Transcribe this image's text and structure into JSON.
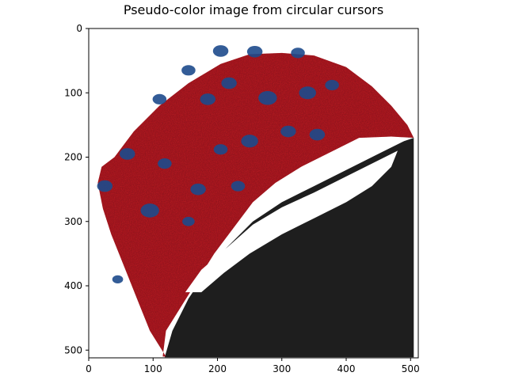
{
  "chart_data": {
    "type": "heatmap",
    "title": "Pseudo-color image from circular cursors",
    "xlabel": "",
    "ylabel": "",
    "image_size": [
      512,
      512
    ],
    "xlim": [
      0,
      511
    ],
    "ylim": [
      511,
      0
    ],
    "y_inverted": true,
    "x_ticks": [
      0,
      100,
      200,
      300,
      400,
      500
    ],
    "y_ticks": [
      0,
      100,
      200,
      300,
      400,
      500
    ],
    "x_tick_labels": [
      "0",
      "100",
      "200",
      "300",
      "400",
      "500"
    ],
    "y_tick_labels": [
      "0",
      "100",
      "200",
      "300",
      "400",
      "500"
    ],
    "grid": false,
    "legend": "none",
    "colors": {
      "tissue": "#b01a22",
      "nuclei": "#1d4a8c",
      "background_dark": "#1e1e1e",
      "saturated": "#ffffff"
    },
    "regions": {
      "tissue_outline": [
        [
          120,
          510
        ],
        [
          95,
          470
        ],
        [
          75,
          420
        ],
        [
          55,
          370
        ],
        [
          35,
          320
        ],
        [
          22,
          280
        ],
        [
          14,
          240
        ],
        [
          20,
          215
        ],
        [
          40,
          200
        ],
        [
          70,
          160
        ],
        [
          110,
          120
        ],
        [
          155,
          85
        ],
        [
          205,
          55
        ],
        [
          250,
          40
        ],
        [
          300,
          38
        ],
        [
          350,
          42
        ],
        [
          400,
          60
        ],
        [
          440,
          90
        ],
        [
          470,
          120
        ],
        [
          495,
          150
        ],
        [
          505,
          170
        ],
        [
          470,
          168
        ],
        [
          420,
          170
        ],
        [
          380,
          190
        ],
        [
          330,
          215
        ],
        [
          290,
          240
        ],
        [
          255,
          270
        ],
        [
          225,
          310
        ],
        [
          195,
          350
        ],
        [
          170,
          390
        ],
        [
          145,
          430
        ],
        [
          120,
          470
        ],
        [
          115,
          510
        ]
      ],
      "dark_region": [
        [
          118,
          511
        ],
        [
          130,
          470
        ],
        [
          155,
          420
        ],
        [
          185,
          375
        ],
        [
          215,
          340
        ],
        [
          255,
          300
        ],
        [
          300,
          270
        ],
        [
          350,
          245
        ],
        [
          400,
          220
        ],
        [
          450,
          195
        ],
        [
          490,
          175
        ],
        [
          505,
          170
        ],
        [
          505,
          511
        ]
      ],
      "saturated_region": [
        [
          150,
          410
        ],
        [
          175,
          375
        ],
        [
          210,
          345
        ],
        [
          255,
          305
        ],
        [
          300,
          278
        ],
        [
          350,
          255
        ],
        [
          400,
          230
        ],
        [
          440,
          210
        ],
        [
          480,
          190
        ],
        [
          470,
          215
        ],
        [
          440,
          245
        ],
        [
          400,
          270
        ],
        [
          350,
          295
        ],
        [
          300,
          320
        ],
        [
          250,
          350
        ],
        [
          210,
          380
        ],
        [
          175,
          410
        ]
      ],
      "nuclei": [
        {
          "x": 205,
          "y": 35,
          "r": 10
        },
        {
          "x": 258,
          "y": 36,
          "r": 10
        },
        {
          "x": 325,
          "y": 38,
          "r": 9
        },
        {
          "x": 155,
          "y": 65,
          "r": 9
        },
        {
          "x": 218,
          "y": 85,
          "r": 10
        },
        {
          "x": 278,
          "y": 108,
          "r": 12
        },
        {
          "x": 340,
          "y": 100,
          "r": 11
        },
        {
          "x": 378,
          "y": 88,
          "r": 9
        },
        {
          "x": 110,
          "y": 110,
          "r": 9
        },
        {
          "x": 185,
          "y": 110,
          "r": 10
        },
        {
          "x": 310,
          "y": 160,
          "r": 10
        },
        {
          "x": 355,
          "y": 165,
          "r": 10
        },
        {
          "x": 250,
          "y": 175,
          "r": 11
        },
        {
          "x": 205,
          "y": 188,
          "r": 9
        },
        {
          "x": 60,
          "y": 195,
          "r": 10
        },
        {
          "x": 118,
          "y": 210,
          "r": 9
        },
        {
          "x": 170,
          "y": 250,
          "r": 10
        },
        {
          "x": 232,
          "y": 245,
          "r": 9
        },
        {
          "x": 25,
          "y": 245,
          "r": 10
        },
        {
          "x": 95,
          "y": 283,
          "r": 12
        },
        {
          "x": 155,
          "y": 300,
          "r": 8
        },
        {
          "x": 45,
          "y": 390,
          "r": 7
        }
      ]
    }
  }
}
